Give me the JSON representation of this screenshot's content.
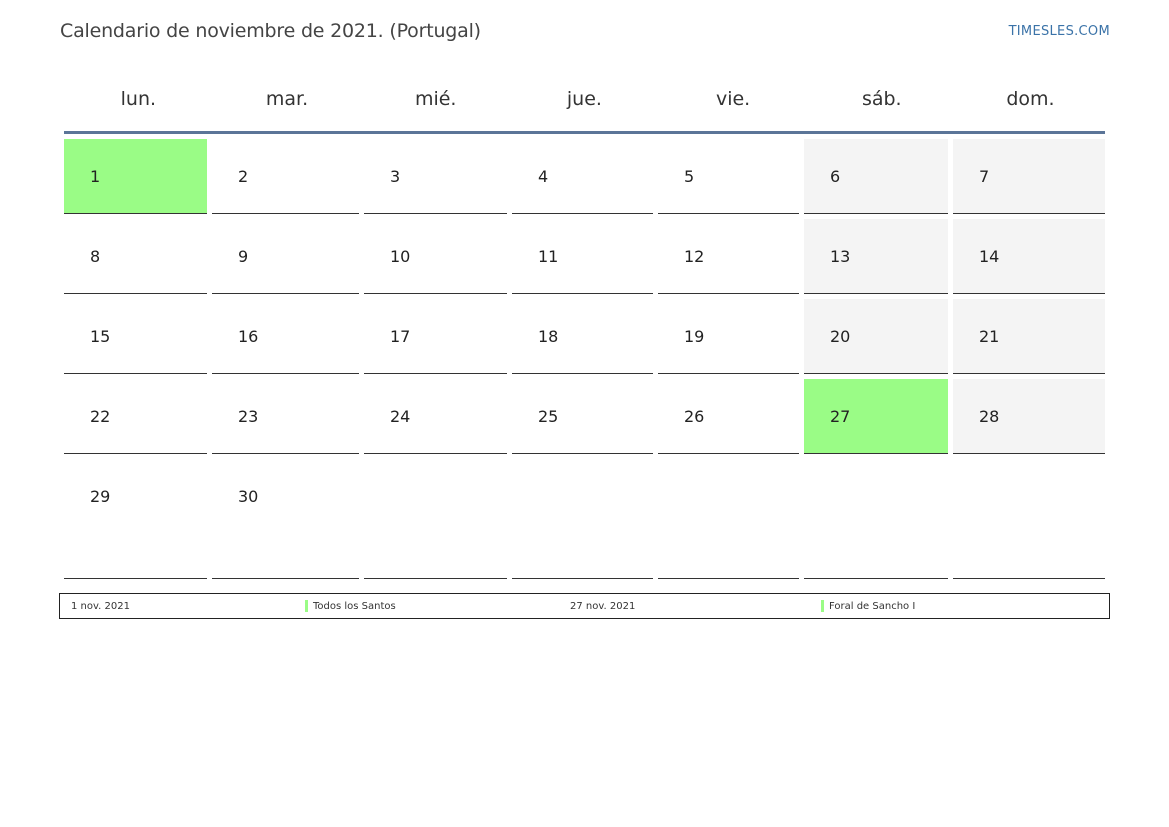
{
  "header": {
    "title": "Calendario de noviembre de 2021. (Portugal)",
    "site": "TIMESLES.COM"
  },
  "weekdays": [
    "lun.",
    "mar.",
    "mié.",
    "jue.",
    "vie.",
    "sáb.",
    "dom."
  ],
  "colors": {
    "holiday": "#9afc86",
    "weekend": "#f4f4f4",
    "header_rule": "#5b7598",
    "link": "#3b73a8"
  },
  "weeks": [
    [
      {
        "d": "1",
        "t": "holiday"
      },
      {
        "d": "2",
        "t": "normal"
      },
      {
        "d": "3",
        "t": "normal"
      },
      {
        "d": "4",
        "t": "normal"
      },
      {
        "d": "5",
        "t": "normal"
      },
      {
        "d": "6",
        "t": "weekend"
      },
      {
        "d": "7",
        "t": "weekend"
      }
    ],
    [
      {
        "d": "8",
        "t": "normal"
      },
      {
        "d": "9",
        "t": "normal"
      },
      {
        "d": "10",
        "t": "normal"
      },
      {
        "d": "11",
        "t": "normal"
      },
      {
        "d": "12",
        "t": "normal"
      },
      {
        "d": "13",
        "t": "weekend"
      },
      {
        "d": "14",
        "t": "weekend"
      }
    ],
    [
      {
        "d": "15",
        "t": "normal"
      },
      {
        "d": "16",
        "t": "normal"
      },
      {
        "d": "17",
        "t": "normal"
      },
      {
        "d": "18",
        "t": "normal"
      },
      {
        "d": "19",
        "t": "normal"
      },
      {
        "d": "20",
        "t": "weekend"
      },
      {
        "d": "21",
        "t": "weekend"
      }
    ],
    [
      {
        "d": "22",
        "t": "normal"
      },
      {
        "d": "23",
        "t": "normal"
      },
      {
        "d": "24",
        "t": "normal"
      },
      {
        "d": "25",
        "t": "normal"
      },
      {
        "d": "26",
        "t": "normal"
      },
      {
        "d": "27",
        "t": "holiday"
      },
      {
        "d": "28",
        "t": "weekend"
      }
    ],
    [
      {
        "d": "29",
        "t": "normal"
      },
      {
        "d": "30",
        "t": "normal"
      },
      {
        "d": "",
        "t": "empty"
      },
      {
        "d": "",
        "t": "empty"
      },
      {
        "d": "",
        "t": "empty"
      },
      {
        "d": "",
        "t": "empty"
      },
      {
        "d": "",
        "t": "empty"
      }
    ]
  ],
  "legend": [
    {
      "date": "1 nov. 2021",
      "name": "Todos los Santos"
    },
    {
      "date": "27 nov. 2021",
      "name": "Foral de Sancho I"
    }
  ]
}
